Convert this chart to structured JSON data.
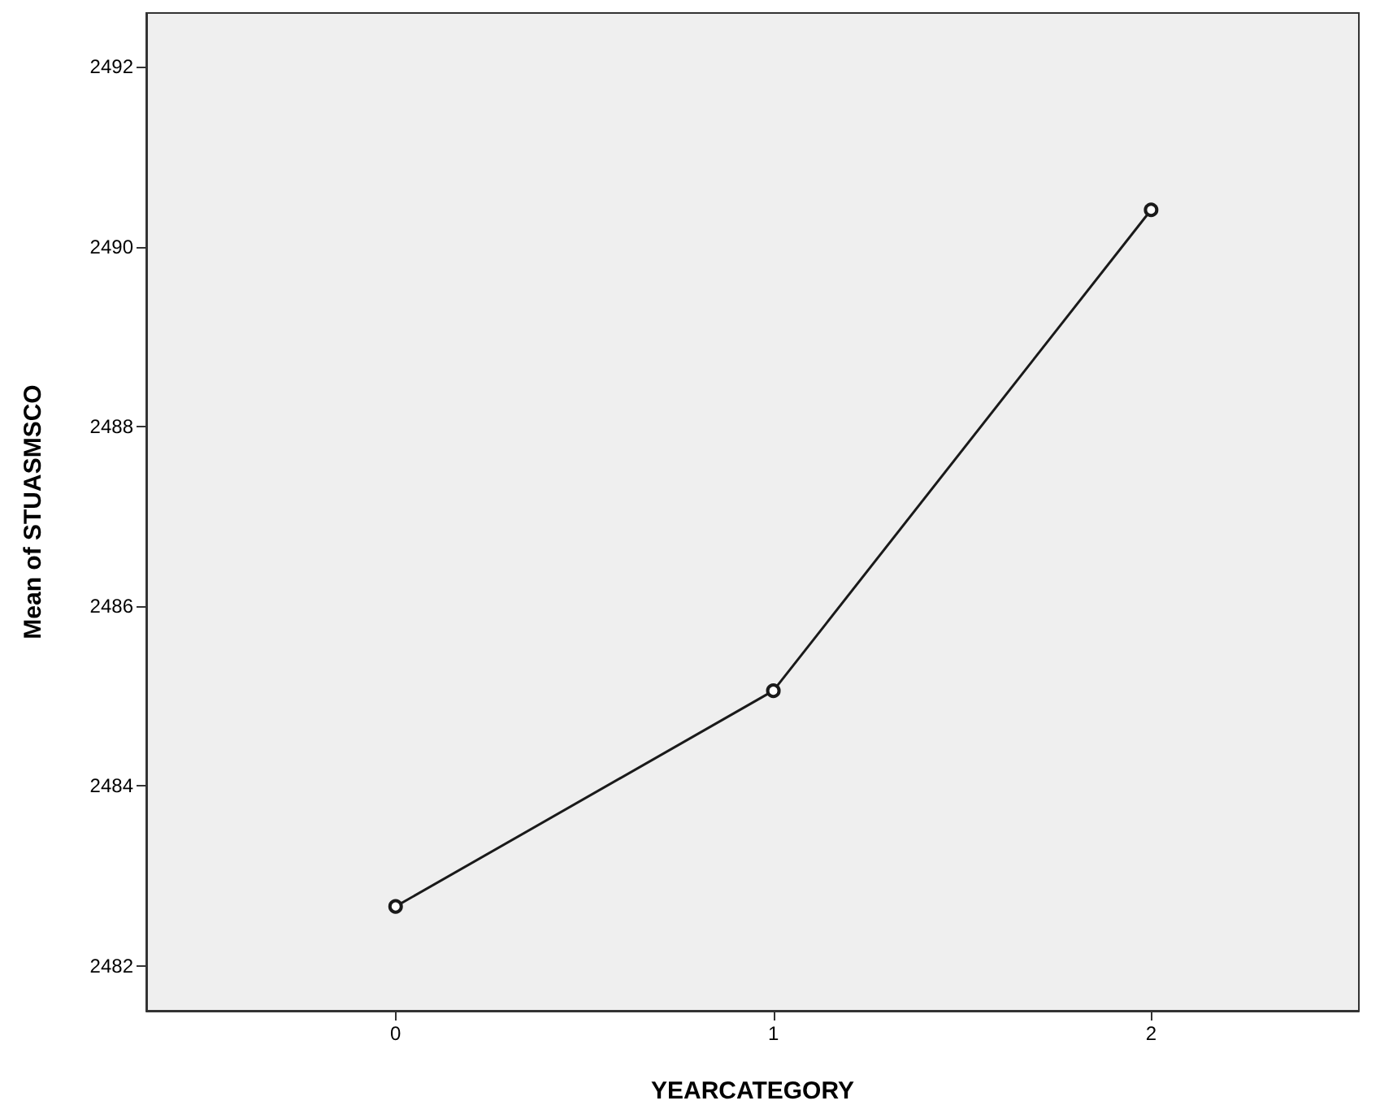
{
  "chart_data": {
    "type": "line",
    "xlabel": "YEARCATEGORY",
    "ylabel": "Mean of STUASMSCO",
    "x": [
      0,
      1,
      2
    ],
    "series": [
      {
        "color": "#1a1a1a",
        "values": [
          2482.66,
          2485.06,
          2490.41
        ]
      }
    ],
    "xlim": [
      -0.66,
      2.55
    ],
    "xticks": [
      0,
      1,
      2
    ],
    "ylim": [
      2481.5,
      2492.6
    ],
    "yticks": [
      2482,
      2484,
      2486,
      2488,
      2490,
      2492
    ],
    "grid": false,
    "marker": "circle",
    "line_style": "solid"
  }
}
